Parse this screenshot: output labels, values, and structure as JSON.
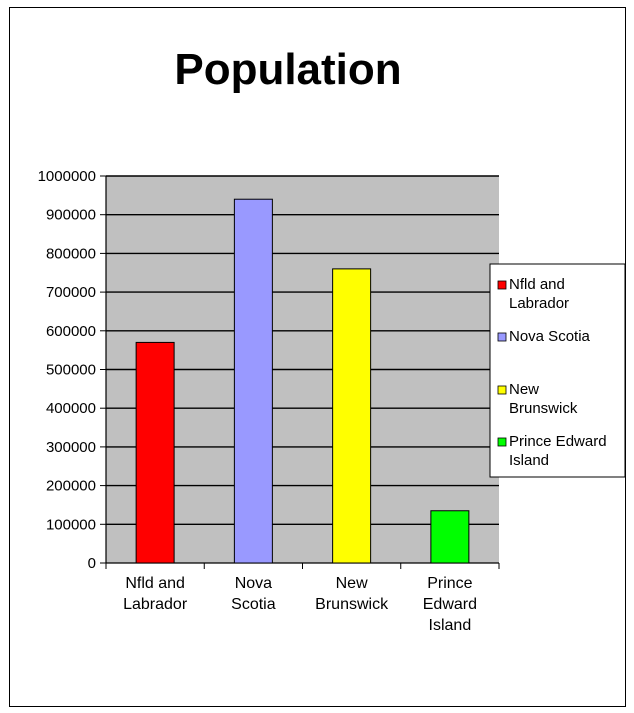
{
  "chart_data": {
    "type": "bar",
    "title": "Population",
    "xlabel": "",
    "ylabel": "",
    "categories": [
      "Nfld and Labrador",
      "Nova Scotia",
      "New Brunswick",
      "Prince Edward Island"
    ],
    "category_label_lines": [
      [
        "Nfld and",
        "Labrador"
      ],
      [
        "Nova",
        "Scotia"
      ],
      [
        "New",
        "Brunswick"
      ],
      [
        "Prince",
        "Edward",
        "Island"
      ]
    ],
    "values": [
      570000,
      940000,
      760000,
      135000
    ],
    "ylim": [
      0,
      1000000
    ],
    "yticks": [
      0,
      100000,
      200000,
      300000,
      400000,
      500000,
      600000,
      700000,
      800000,
      900000,
      1000000
    ],
    "ytick_labels": [
      "0",
      "100000",
      "200000",
      "300000",
      "400000",
      "500000",
      "600000",
      "700000",
      "800000",
      "900000",
      "1000000"
    ],
    "colors": [
      "#ff0000",
      "#9999ff",
      "#ffff00",
      "#00ff00"
    ],
    "plot_background": "#c0c0c0",
    "grid": true,
    "legend_position": "right",
    "legend": [
      {
        "lines": [
          "Nfld and",
          "Labrador"
        ],
        "color": "#ff0000"
      },
      {
        "lines": [
          "Nova Scotia"
        ],
        "color": "#9999ff"
      },
      {
        "lines": [
          "New",
          "Brunswick"
        ],
        "color": "#ffff00"
      },
      {
        "lines": [
          "Prince Edward",
          "Island"
        ],
        "color": "#00ff00"
      }
    ]
  }
}
